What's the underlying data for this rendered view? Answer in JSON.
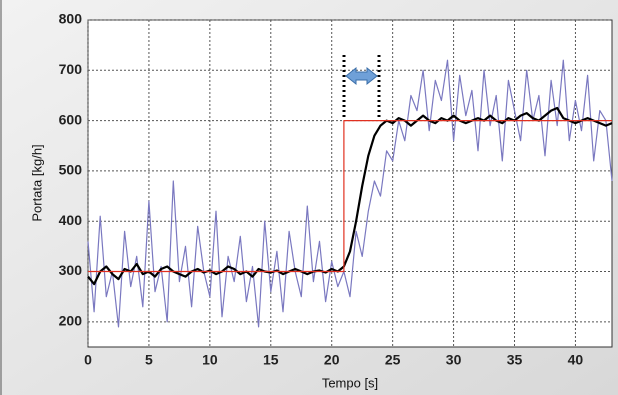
{
  "chart_data": {
    "type": "line",
    "xlabel": "Tempo [s]",
    "ylabel": "Portata [kg/h]",
    "x": [
      0,
      0.5,
      1,
      1.5,
      2,
      2.5,
      3,
      3.5,
      4,
      4.5,
      5,
      5.5,
      6,
      6.5,
      7,
      7.5,
      8,
      8.5,
      9,
      9.5,
      10,
      10.5,
      11,
      11.5,
      12,
      12.5,
      13,
      13.5,
      14,
      14.5,
      15,
      15.5,
      16,
      16.5,
      17,
      17.5,
      18,
      18.5,
      19,
      19.5,
      20,
      20.5,
      21,
      21.5,
      22,
      22.5,
      23,
      23.5,
      24,
      24.5,
      25,
      25.5,
      26,
      26.5,
      27,
      27.5,
      28,
      28.5,
      29,
      29.5,
      30,
      30.5,
      31,
      31.5,
      32,
      32.5,
      33,
      33.5,
      34,
      34.5,
      35,
      35.5,
      36,
      36.5,
      37,
      37.5,
      38,
      38.5,
      39,
      39.5,
      40,
      40.5,
      41,
      41.5,
      42,
      42.5,
      43
    ],
    "series": [
      {
        "color": "#7a78c0",
        "values": [
          360,
          220,
          410,
          250,
          300,
          190,
          380,
          270,
          330,
          230,
          440,
          260,
          310,
          200,
          480,
          280,
          350,
          230,
          390,
          300,
          250,
          420,
          210,
          330,
          280,
          370,
          240,
          310,
          190,
          400,
          260,
          340,
          220,
          380,
          300,
          250,
          430,
          280,
          360,
          240,
          320,
          270,
          300,
          250,
          380,
          330,
          420,
          480,
          450,
          540,
          520,
          600,
          560,
          650,
          620,
          700,
          580,
          680,
          640,
          720,
          560,
          690,
          610,
          660,
          540,
          700,
          590,
          650,
          520,
          680,
          620,
          560,
          700,
          600,
          650,
          530,
          680,
          590,
          720,
          560,
          640,
          580,
          690,
          520,
          620,
          600,
          480
        ]
      },
      {
        "color": "#000000",
        "values": [
          290,
          275,
          300,
          310,
          295,
          285,
          305,
          300,
          315,
          295,
          300,
          290,
          305,
          310,
          300,
          295,
          290,
          300,
          305,
          298,
          302,
          295,
          300,
          310,
          305,
          295,
          300,
          290,
          305,
          300,
          298,
          302,
          295,
          300,
          305,
          300,
          295,
          300,
          302,
          298,
          305,
          300,
          310,
          340,
          400,
          470,
          530,
          570,
          590,
          600,
          595,
          605,
          600,
          590,
          600,
          610,
          600,
          595,
          605,
          600,
          610,
          600,
          595,
          600,
          605,
          600,
          610,
          600,
          595,
          605,
          600,
          610,
          615,
          605,
          600,
          610,
          620,
          625,
          605,
          600,
          595,
          600,
          605,
          600,
          595,
          590,
          595
        ]
      },
      {
        "color": "#e03020",
        "x": [
          0,
          21,
          21,
          43
        ],
        "values": [
          300,
          300,
          600,
          600
        ]
      }
    ],
    "xlim": [
      0,
      43
    ],
    "xticks": [
      0,
      5,
      10,
      15,
      20,
      25,
      30,
      35,
      40
    ],
    "ylim": [
      150,
      800
    ],
    "yticks": [
      200,
      300,
      400,
      500,
      600,
      700,
      800
    ],
    "grid": true
  }
}
